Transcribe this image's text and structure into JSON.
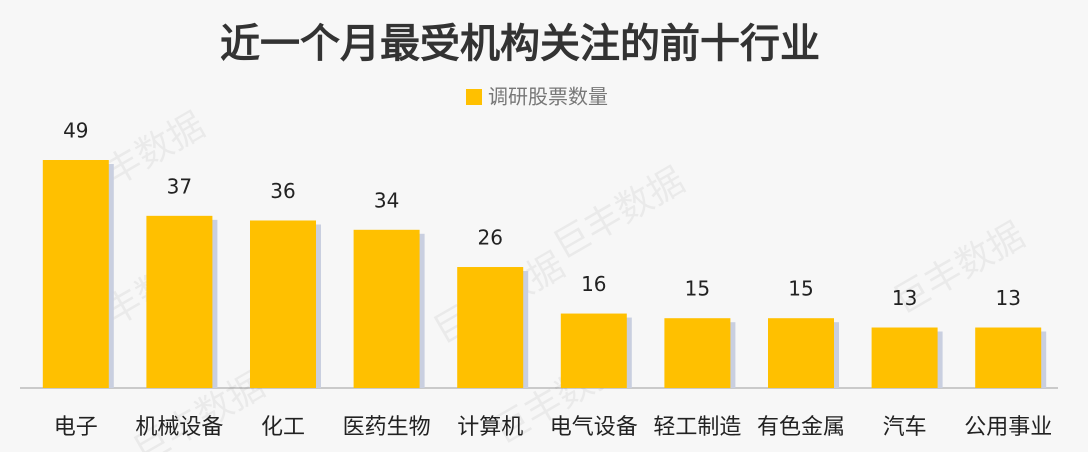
{
  "chart_data": {
    "type": "bar",
    "title": "近一个月最受机构关注的前十行业",
    "legend": "调研股票数量",
    "color": "#ffc000",
    "watermark": "巨丰数据",
    "categories": [
      "电子",
      "机械设备",
      "化工",
      "医药生物",
      "计算机",
      "电气设备",
      "轻工制造",
      "有色金属",
      "汽车",
      "公用事业"
    ],
    "values": [
      49,
      37,
      36,
      34,
      26,
      16,
      15,
      15,
      13,
      13
    ]
  }
}
